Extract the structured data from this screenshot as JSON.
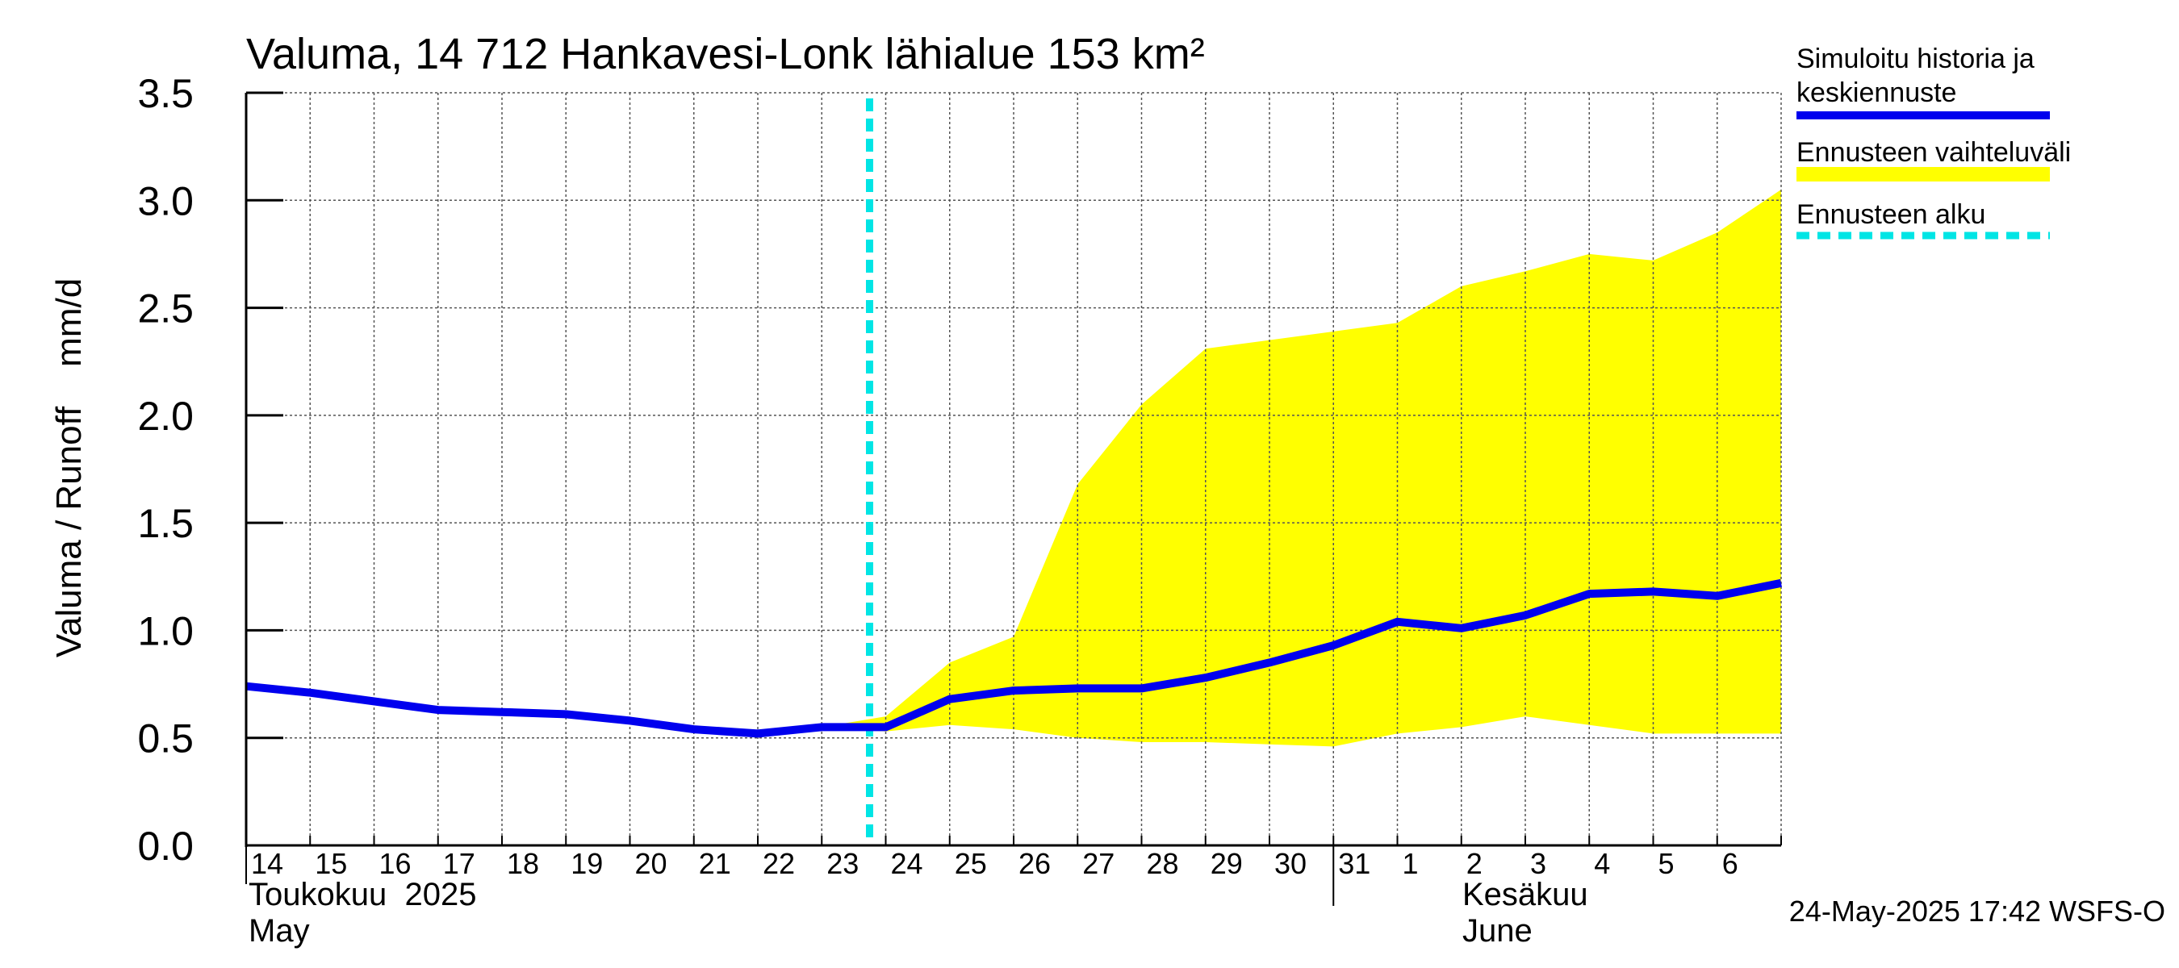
{
  "chart_data": {
    "type": "line",
    "title": "Valuma, 14 712 Hankavesi-Lonk lähialue 153 km²",
    "ylabel": "Valuma / Runoff    mm/d",
    "ylim": [
      0,
      3.5
    ],
    "yticks": [
      "0.0",
      "0.5",
      "1.0",
      "1.5",
      "2.0",
      "2.5",
      "3.0",
      "3.5"
    ],
    "x_day_labels": [
      "14",
      "15",
      "16",
      "17",
      "18",
      "19",
      "20",
      "21",
      "22",
      "23",
      "24",
      "25",
      "26",
      "27",
      "28",
      "29",
      "30",
      "31",
      "1",
      "2",
      "3",
      "4",
      "5",
      "6"
    ],
    "month_labels": {
      "may_fi": "Toukokuu  2025",
      "may_en": "May",
      "june_fi": "Kesäkuu",
      "june_en": "June"
    },
    "grid": true,
    "forecast_start": "2025-05-24",
    "series": [
      {
        "name": "Simuloitu historia ja keskiennuste",
        "color": "#0000ee",
        "x": [
          "2025-05-14",
          "2025-05-15",
          "2025-05-16",
          "2025-05-17",
          "2025-05-18",
          "2025-05-19",
          "2025-05-20",
          "2025-05-21",
          "2025-05-22",
          "2025-05-23",
          "2025-05-24",
          "2025-05-25",
          "2025-05-26",
          "2025-05-27",
          "2025-05-28",
          "2025-05-29",
          "2025-05-30",
          "2025-05-31",
          "2025-06-01",
          "2025-06-02",
          "2025-06-03",
          "2025-06-04",
          "2025-06-05",
          "2025-06-06",
          "2025-06-07"
        ],
        "values": [
          0.74,
          0.71,
          0.67,
          0.63,
          0.62,
          0.61,
          0.58,
          0.54,
          0.52,
          0.55,
          0.55,
          0.68,
          0.72,
          0.73,
          0.73,
          0.78,
          0.85,
          0.93,
          1.04,
          1.01,
          1.07,
          1.17,
          1.18,
          1.16,
          1.22
        ]
      },
      {
        "name": "Ennusteen vaihteluväli",
        "color": "#ffff00",
        "type": "area",
        "x": [
          "2025-05-23",
          "2025-05-24",
          "2025-05-25",
          "2025-05-26",
          "2025-05-27",
          "2025-05-28",
          "2025-05-29",
          "2025-05-30",
          "2025-05-31",
          "2025-06-01",
          "2025-06-02",
          "2025-06-03",
          "2025-06-04",
          "2025-06-05",
          "2025-06-06",
          "2025-06-07"
        ],
        "upper": [
          0.55,
          0.6,
          0.85,
          0.97,
          1.68,
          2.05,
          2.31,
          2.35,
          2.39,
          2.43,
          2.6,
          2.67,
          2.75,
          2.72,
          2.85,
          3.05
        ],
        "lower": [
          0.55,
          0.53,
          0.56,
          0.54,
          0.5,
          0.48,
          0.48,
          0.47,
          0.46,
          0.52,
          0.55,
          0.6,
          0.56,
          0.52,
          0.52,
          0.52
        ]
      }
    ],
    "legend": {
      "position": "right",
      "items": [
        {
          "label_line1": "Simuloitu historia ja",
          "label_line2": "keskiennuste",
          "color": "#0000ee",
          "style": "solid"
        },
        {
          "label_line1": "Ennusteen vaihteluväli",
          "label_line2": "",
          "color": "#ffff00",
          "style": "solid"
        },
        {
          "label_line1": "Ennusteen alku",
          "label_line2": "",
          "color": "#00e5e5",
          "style": "dashed"
        }
      ]
    },
    "footer": "24-May-2025 17:42 WSFS-O"
  }
}
